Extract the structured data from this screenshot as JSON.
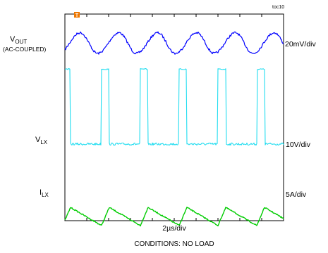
{
  "chart_data": {
    "type": "line",
    "tag": "toc10",
    "trigger_marker": "T",
    "x_scale": "2µs/div",
    "conditions": "CONDITIONS: NO LOAD",
    "divisions": {
      "x": 10,
      "y": 8
    },
    "grid": false,
    "x_range_us": [
      0,
      20
    ],
    "channels": [
      {
        "id": "vout",
        "label_main": "V",
        "label_sub": "OUT",
        "label_extra": "(AC-COUPLED)",
        "scale": "20mV/div",
        "color": "#0000ff",
        "waveform": "triangle-ripple",
        "period_us": 3.55,
        "peak_to_peak_div": 0.8
      },
      {
        "id": "vlx",
        "label_main": "V",
        "label_sub": "LX",
        "scale": "10V/div",
        "color": "#22ddf0",
        "waveform": "pulse",
        "period_us": 3.55,
        "high_div": 2.9,
        "duty_pct": 20
      },
      {
        "id": "ilx",
        "label_main": "I",
        "label_sub": "LX",
        "scale": "5A/div",
        "color": "#00cc00",
        "waveform": "sawtooth",
        "period_us": 3.55,
        "peak_to_peak_div": 0.7
      }
    ]
  }
}
